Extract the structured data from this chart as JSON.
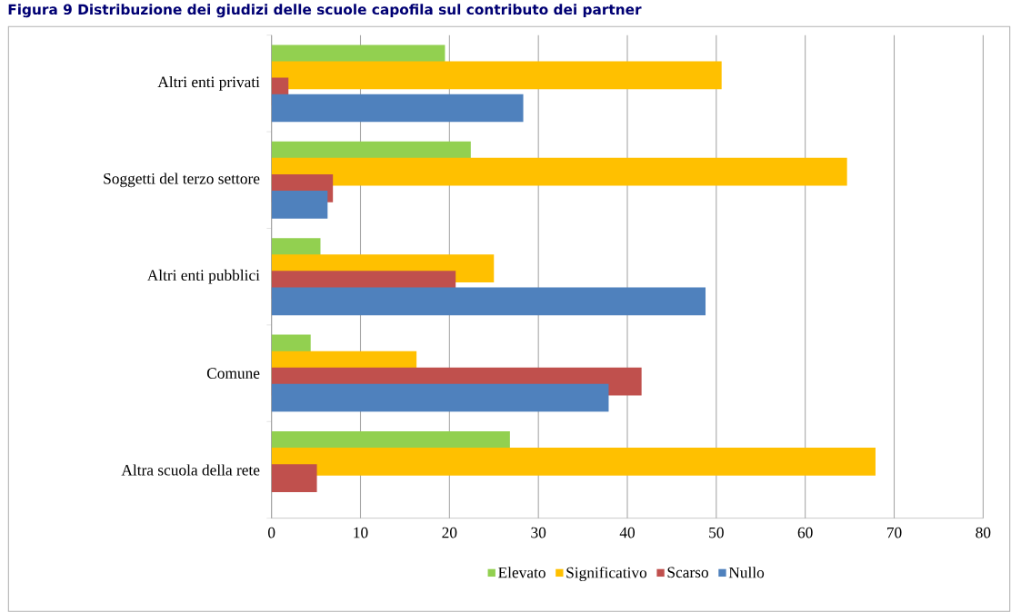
{
  "chart_data": {
    "type": "bar",
    "orientation": "horizontal",
    "title": "Figura 9 Distribuzione dei giudizi delle scuole capofila sul contributo dei partner",
    "categories": [
      "Altri enti privati",
      "Soggetti del terzo settore",
      "Altri enti pubblici",
      "Comune",
      "Altra scuola della rete"
    ],
    "series": [
      {
        "name": "Elevato",
        "color": "#92d050",
        "values": [
          19.5,
          22.4,
          5.5,
          4.4,
          26.8
        ]
      },
      {
        "name": "Significativo",
        "color": "#ffc000",
        "values": [
          50.6,
          64.7,
          25.0,
          16.3,
          67.9
        ]
      },
      {
        "name": "Scarso",
        "color": "#c0504d",
        "values": [
          1.9,
          6.9,
          20.7,
          41.6,
          5.1
        ]
      },
      {
        "name": "Nullo",
        "color": "#4f81bd",
        "values": [
          28.3,
          6.3,
          48.8,
          37.9,
          null
        ]
      }
    ],
    "xlim": [
      0,
      80
    ],
    "xticks": [
      0,
      10,
      20,
      30,
      40,
      50,
      60,
      70,
      80
    ],
    "grid": "x",
    "legend": "bottom"
  }
}
